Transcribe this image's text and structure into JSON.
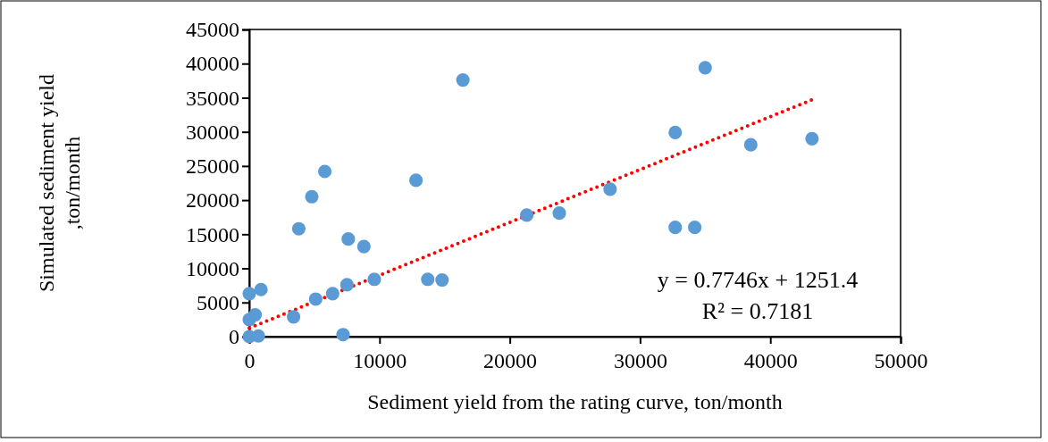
{
  "chart_data": {
    "type": "scatter",
    "xlabel": "Sediment yield from the rating curve, ton/month",
    "ylabel": "Simulated sediment yield ,ton/month",
    "xlim": [
      0,
      50000
    ],
    "xticks": [
      0,
      10000,
      20000,
      30000,
      40000,
      50000
    ],
    "ylim": [
      0,
      45000
    ],
    "yticks": [
      0,
      5000,
      10000,
      15000,
      20000,
      25000,
      30000,
      35000,
      40000,
      45000
    ],
    "grid": false,
    "marker": "circle",
    "series": [
      {
        "color": "#5b9bd5",
        "x": [
          0,
          900,
          450,
          0,
          700,
          0,
          3400,
          7200,
          5100,
          6400,
          7500,
          9600,
          13700,
          14800,
          3800,
          7600,
          8800,
          4800,
          5800,
          12800,
          16400,
          21300,
          23800,
          27700,
          32700,
          32700,
          34200,
          35000,
          38500,
          43200
        ],
        "values": [
          6300,
          6900,
          3200,
          2500,
          100,
          0,
          2900,
          300,
          5500,
          6300,
          7600,
          8400,
          8400,
          8300,
          15800,
          14300,
          13200,
          20500,
          24200,
          22900,
          37600,
          17800,
          18100,
          21600,
          29900,
          16000,
          16000,
          39400,
          28100,
          29000
        ]
      },
      {
        "type": "line",
        "color": "#ff0000",
        "line_style": "dotted",
        "marker": "none",
        "x": [
          0,
          43200
        ],
        "values": [
          1250,
          34700
        ]
      }
    ],
    "annotations": [
      {
        "text": "y = 0.7746x + 1251.4"
      },
      {
        "text": "R² = 0.7181"
      }
    ]
  }
}
